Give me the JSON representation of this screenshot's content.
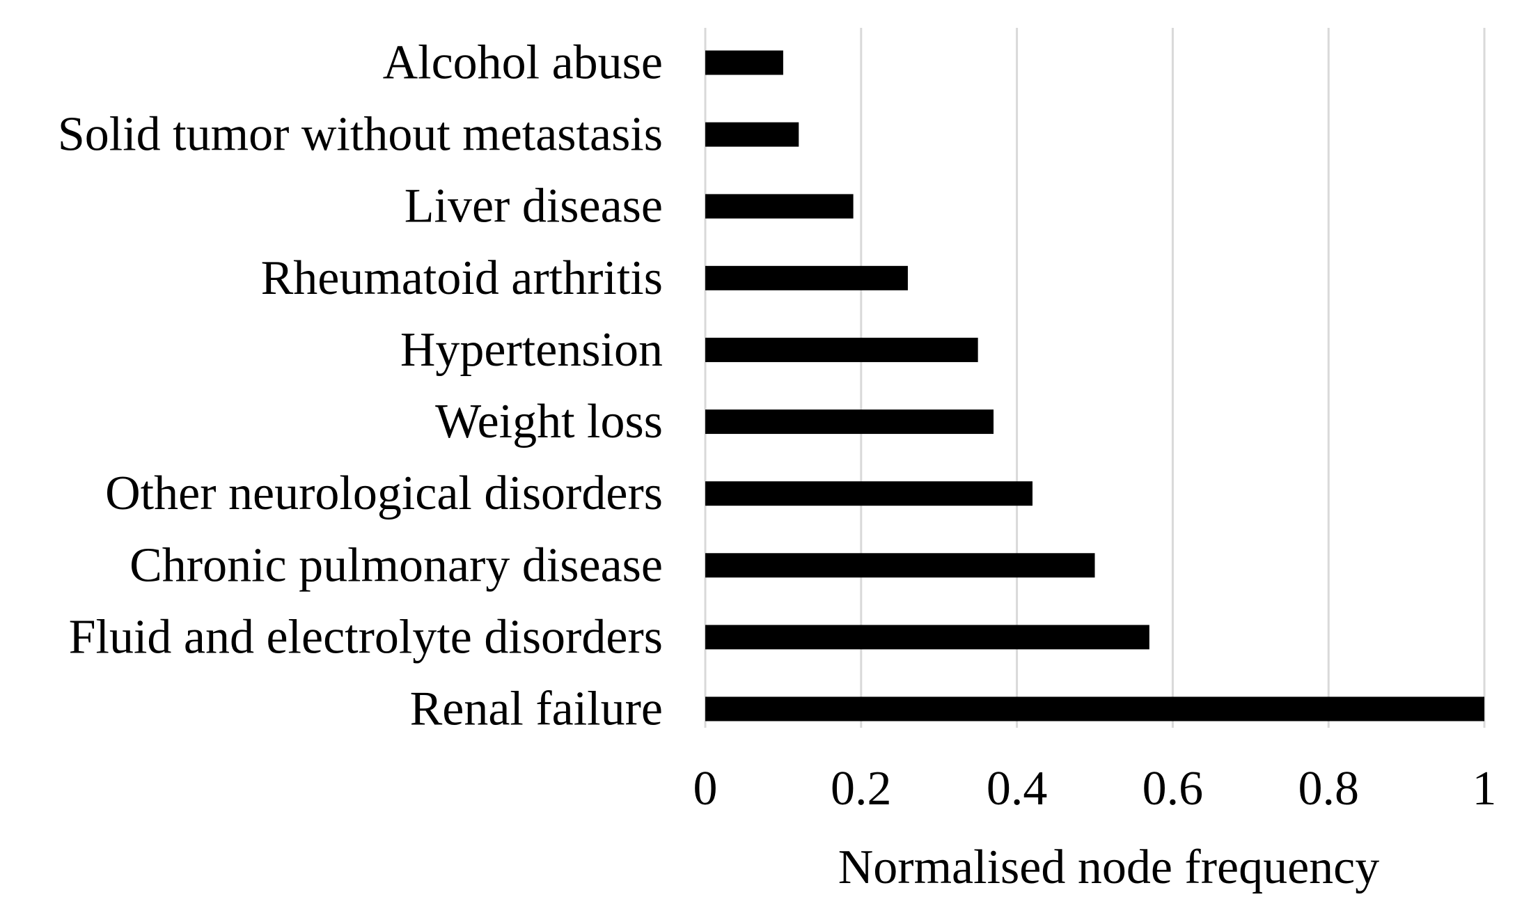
{
  "chart_data": {
    "type": "bar",
    "orientation": "horizontal",
    "categories": [
      "Alcohol abuse",
      "Solid tumor without metastasis",
      "Liver disease",
      "Rheumatoid arthritis",
      "Hypertension",
      "Weight loss",
      "Other neurological disorders",
      "Chronic pulmonary disease",
      "Fluid and electrolyte disorders",
      "Renal failure"
    ],
    "values": [
      0.1,
      0.12,
      0.19,
      0.26,
      0.35,
      0.37,
      0.42,
      0.5,
      0.57,
      1.0
    ],
    "xlabel": "Normalised node frequency",
    "ylabel": "",
    "title": "",
    "xlim": [
      0,
      1
    ],
    "xticks": [
      0,
      0.2,
      0.4,
      0.6,
      0.8,
      1
    ],
    "xtick_labels": [
      "0",
      "0.2",
      "0.4",
      "0.6",
      "0.8",
      "1"
    ],
    "grid": "vertical",
    "legend": "none",
    "colors": {
      "bar": "#000000",
      "grid": "#d9d9d9",
      "background": "#ffffff"
    }
  }
}
